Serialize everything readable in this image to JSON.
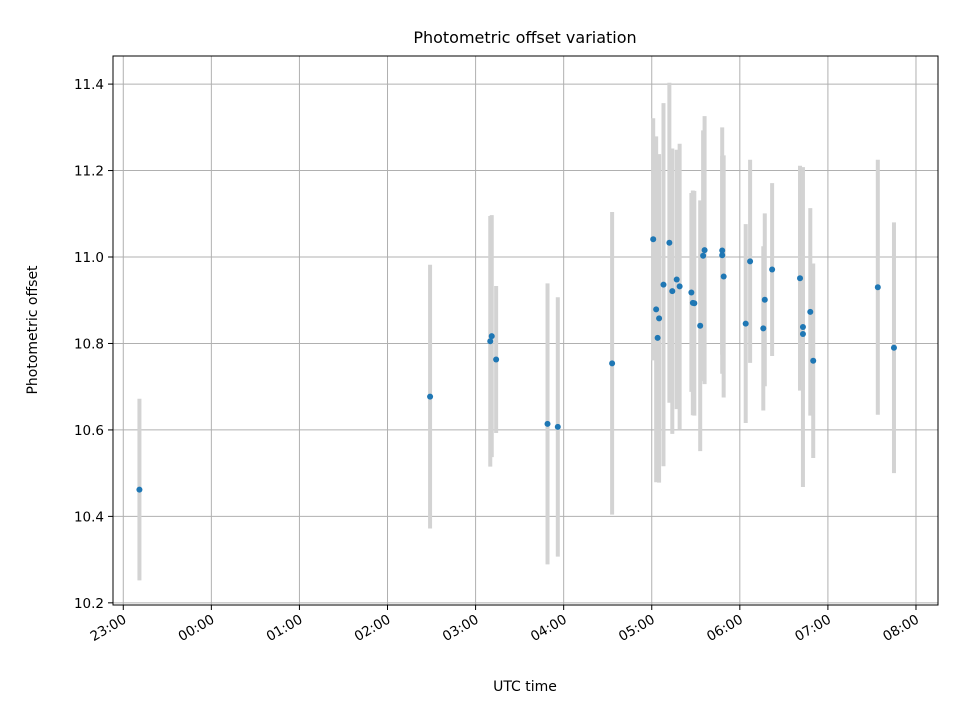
{
  "chart_data": {
    "type": "scatter",
    "title": "Photometric offset variation",
    "xlabel": "UTC time",
    "ylabel": "Photometric offset",
    "x_tick_labels": [
      "23:00",
      "00:00",
      "01:00",
      "02:00",
      "03:00",
      "04:00",
      "05:00",
      "06:00",
      "07:00",
      "08:00"
    ],
    "y_tick_labels": [
      "10.2",
      "10.4",
      "10.6",
      "10.8",
      "11.0",
      "11.2",
      "11.4"
    ],
    "y_ticks": [
      10.2,
      10.4,
      10.6,
      10.8,
      11.0,
      11.2,
      11.4
    ],
    "ylim": [
      10.195,
      11.465
    ],
    "xlim": [
      "22:53",
      "08:15"
    ],
    "grid": true,
    "colors": {
      "marker": "#1f77b4",
      "errorbar": "#d3d3d3",
      "grid": "#b0b0b0"
    },
    "points": [
      {
        "x": "23:11",
        "y": 10.462,
        "err": 0.21
      },
      {
        "x": "02:29",
        "y": 10.677,
        "err": 0.305
      },
      {
        "x": "03:10",
        "y": 10.805,
        "err": 0.29
      },
      {
        "x": "03:11",
        "y": 10.817,
        "err": 0.28
      },
      {
        "x": "03:14",
        "y": 10.763,
        "err": 0.17
      },
      {
        "x": "03:49",
        "y": 10.614,
        "err": 0.325
      },
      {
        "x": "03:56",
        "y": 10.607,
        "err": 0.3
      },
      {
        "x": "04:33",
        "y": 10.754,
        "err": 0.35
      },
      {
        "x": "05:01",
        "y": 11.041,
        "err": 0.28
      },
      {
        "x": "05:03",
        "y": 10.879,
        "err": 0.4
      },
      {
        "x": "05:04",
        "y": 10.813,
        "err": 0.33
      },
      {
        "x": "05:05",
        "y": 10.858,
        "err": 0.38
      },
      {
        "x": "05:08",
        "y": 10.936,
        "err": 0.42
      },
      {
        "x": "05:12",
        "y": 11.033,
        "err": 0.37
      },
      {
        "x": "05:14",
        "y": 10.921,
        "err": 0.33
      },
      {
        "x": "05:17",
        "y": 10.948,
        "err": 0.3
      },
      {
        "x": "05:19",
        "y": 10.932,
        "err": 0.33
      },
      {
        "x": "05:27",
        "y": 10.918,
        "err": 0.23
      },
      {
        "x": "05:28",
        "y": 10.894,
        "err": 0.26
      },
      {
        "x": "05:29",
        "y": 10.893,
        "err": 0.26
      },
      {
        "x": "05:33",
        "y": 10.841,
        "err": 0.29
      },
      {
        "x": "05:35",
        "y": 11.003,
        "err": 0.29
      },
      {
        "x": "05:36",
        "y": 11.016,
        "err": 0.31
      },
      {
        "x": "05:48",
        "y": 11.015,
        "err": 0.285
      },
      {
        "x": "05:48",
        "y": 11.004,
        "err": 0.23
      },
      {
        "x": "05:49",
        "y": 10.955,
        "err": 0.28
      },
      {
        "x": "06:04",
        "y": 10.846,
        "err": 0.23
      },
      {
        "x": "06:07",
        "y": 10.99,
        "err": 0.235
      },
      {
        "x": "06:16",
        "y": 10.835,
        "err": 0.19
      },
      {
        "x": "06:17",
        "y": 10.901,
        "err": 0.2
      },
      {
        "x": "06:22",
        "y": 10.971,
        "err": 0.2
      },
      {
        "x": "06:41",
        "y": 10.951,
        "err": 0.26
      },
      {
        "x": "06:43",
        "y": 10.838,
        "err": 0.37
      },
      {
        "x": "06:43",
        "y": 10.822,
        "err": 0.13
      },
      {
        "x": "06:48",
        "y": 10.873,
        "err": 0.24
      },
      {
        "x": "06:50",
        "y": 10.76,
        "err": 0.225
      },
      {
        "x": "07:34",
        "y": 10.93,
        "err": 0.295
      },
      {
        "x": "07:45",
        "y": 10.79,
        "err": 0.29
      }
    ]
  }
}
